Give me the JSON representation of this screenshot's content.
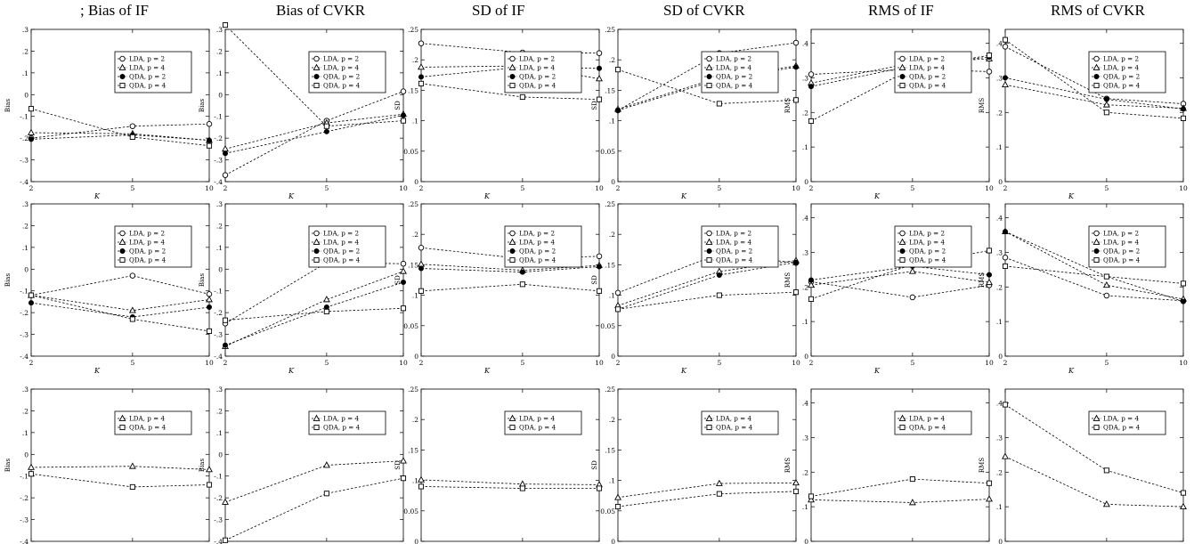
{
  "figure": {
    "column_titles": [
      "; Bias of IF",
      "Bias of CVKR",
      "SD of IF",
      "SD of CVKR",
      "RMS of IF",
      "RMS of CVKR"
    ]
  },
  "legend_labels": {
    "lda2": "LDA, p = 2",
    "lda4": "LDA, p = 4",
    "qda2": "QDA, p = 2",
    "qda4": "QDA, p = 4"
  },
  "markers": {
    "lda2": "open-circle",
    "lda4": "open-triangle",
    "qda2": "filled-circle",
    "qda4": "open-square"
  },
  "chart_data": [
    {
      "type": "line",
      "row": 1,
      "col": 1,
      "x": [
        2,
        5,
        10
      ],
      "xlabel": "K",
      "ylabel": "Bias",
      "ylim": [
        -0.4,
        0.3
      ],
      "yticks": [
        ".3",
        ".2",
        ".1",
        "0",
        "-.1",
        "-.2",
        "-.3",
        "-.4"
      ],
      "xticks": [
        "2",
        "5",
        "10"
      ],
      "series": [
        {
          "key": "lda2",
          "values": [
            -0.2,
            -0.145,
            -0.135
          ]
        },
        {
          "key": "lda4",
          "values": [
            -0.175,
            -0.18,
            -0.21
          ]
        },
        {
          "key": "qda2",
          "values": [
            -0.205,
            -0.185,
            -0.21
          ]
        },
        {
          "key": "qda4",
          "values": [
            -0.065,
            -0.195,
            -0.235
          ]
        }
      ]
    },
    {
      "type": "line",
      "row": 1,
      "col": 2,
      "x": [
        2,
        5,
        10
      ],
      "xlabel": "K",
      "ylabel": "Bias",
      "ylim": [
        -0.4,
        0.3
      ],
      "yticks": [
        ".3",
        ".2",
        ".1",
        "0",
        "-.1",
        "-.2",
        "-.3",
        "-.4"
      ],
      "xticks": [
        "2",
        "5",
        "10"
      ],
      "series": [
        {
          "key": "lda2",
          "values": [
            -0.37,
            -0.12,
            0.015
          ]
        },
        {
          "key": "lda4",
          "values": [
            -0.25,
            -0.13,
            -0.09
          ]
        },
        {
          "key": "qda2",
          "values": [
            -0.27,
            -0.17,
            -0.095
          ]
        },
        {
          "key": "qda4",
          "values": [
            0.32,
            -0.145,
            -0.12
          ]
        }
      ]
    },
    {
      "type": "line",
      "row": 1,
      "col": 3,
      "x": [
        2,
        5,
        10
      ],
      "xlabel": "K",
      "ylabel": "SD",
      "ylim": [
        0,
        0.25
      ],
      "yticks": [
        ".25",
        ".2",
        ".15",
        ".1",
        "0.05",
        "0"
      ],
      "xticks": [
        "2",
        "5",
        "10"
      ],
      "series": [
        {
          "key": "lda2",
          "values": [
            0.227,
            0.212,
            0.211
          ]
        },
        {
          "key": "lda4",
          "values": [
            0.188,
            0.19,
            0.169
          ]
        },
        {
          "key": "qda2",
          "values": [
            0.172,
            0.188,
            0.186
          ]
        },
        {
          "key": "qda4",
          "values": [
            0.161,
            0.139,
            0.135
          ]
        }
      ]
    },
    {
      "type": "line",
      "row": 1,
      "col": 4,
      "x": [
        2,
        5,
        10
      ],
      "xlabel": "K",
      "ylabel": "SD",
      "ylim": [
        0,
        0.25
      ],
      "yticks": [
        ".25",
        ".2",
        ".15",
        ".1",
        "0.05",
        "0"
      ],
      "xticks": [
        "2",
        "5",
        "10"
      ],
      "series": [
        {
          "key": "lda2",
          "values": [
            0.117,
            0.211,
            0.228
          ]
        },
        {
          "key": "lda4",
          "values": [
            0.119,
            0.171,
            0.19
          ]
        },
        {
          "key": "qda2",
          "values": [
            0.117,
            0.168,
            0.188
          ]
        },
        {
          "key": "qda4",
          "values": [
            0.184,
            0.128,
            0.134
          ]
        }
      ]
    },
    {
      "type": "line",
      "row": 1,
      "col": 5,
      "x": [
        2,
        5,
        10
      ],
      "xlabel": "K",
      "ylabel": "RMS",
      "ylim": [
        0,
        0.44
      ],
      "yticks": [
        ".4",
        ".3",
        ".2",
        ".1",
        "0"
      ],
      "xticks": [
        "2",
        "5",
        "10"
      ],
      "series": [
        {
          "key": "lda2",
          "values": [
            0.31,
            0.325,
            0.318
          ]
        },
        {
          "key": "lda4",
          "values": [
            0.285,
            0.343,
            0.355
          ]
        },
        {
          "key": "qda2",
          "values": [
            0.275,
            0.335,
            0.36
          ]
        },
        {
          "key": "qda4",
          "values": [
            0.175,
            0.328,
            0.365
          ]
        }
      ]
    },
    {
      "type": "line",
      "row": 1,
      "col": 6,
      "x": [
        2,
        5,
        10
      ],
      "xlabel": "K",
      "ylabel": "RMS",
      "ylim": [
        0,
        0.44
      ],
      "yticks": [
        ".4",
        ".3",
        ".2",
        ".1",
        "0"
      ],
      "xticks": [
        "2",
        "5",
        "10"
      ],
      "series": [
        {
          "key": "lda2",
          "values": [
            0.39,
            0.24,
            0.225
          ]
        },
        {
          "key": "lda4",
          "values": [
            0.28,
            0.222,
            0.212
          ]
        },
        {
          "key": "qda2",
          "values": [
            0.3,
            0.238,
            0.21
          ]
        },
        {
          "key": "qda4",
          "values": [
            0.41,
            0.2,
            0.183
          ]
        }
      ]
    },
    {
      "type": "line",
      "row": 2,
      "col": 1,
      "x": [
        2,
        5,
        10
      ],
      "xlabel": "K",
      "ylabel": "Bias",
      "ylim": [
        -0.4,
        0.3
      ],
      "yticks": [
        ".3",
        ".2",
        ".1",
        "0",
        "-.1",
        "-.2",
        "-.3",
        "-.4"
      ],
      "xticks": [
        "2",
        "5",
        "10"
      ],
      "series": [
        {
          "key": "lda2",
          "values": [
            -0.12,
            -0.03,
            -0.115
          ]
        },
        {
          "key": "lda4",
          "values": [
            -0.12,
            -0.19,
            -0.14
          ]
        },
        {
          "key": "qda2",
          "values": [
            -0.155,
            -0.22,
            -0.175
          ]
        },
        {
          "key": "qda4",
          "values": [
            -0.12,
            -0.23,
            -0.285
          ]
        }
      ]
    },
    {
      "type": "line",
      "row": 2,
      "col": 2,
      "x": [
        2,
        5,
        10
      ],
      "xlabel": "K",
      "ylabel": "Bias",
      "ylim": [
        -0.4,
        0.3
      ],
      "yticks": [
        ".3",
        ".2",
        ".1",
        "0",
        "-.1",
        "-.2",
        "-.3",
        "-.4"
      ],
      "xticks": [
        "2",
        "5",
        "10"
      ],
      "series": [
        {
          "key": "lda2",
          "values": [
            -0.25,
            0.03,
            0.025
          ]
        },
        {
          "key": "lda4",
          "values": [
            -0.355,
            -0.14,
            -0.01
          ]
        },
        {
          "key": "qda2",
          "values": [
            -0.35,
            -0.175,
            -0.06
          ]
        },
        {
          "key": "qda4",
          "values": [
            -0.235,
            -0.195,
            -0.18
          ]
        }
      ]
    },
    {
      "type": "line",
      "row": 2,
      "col": 3,
      "x": [
        2,
        5,
        10
      ],
      "xlabel": "K",
      "ylabel": "SD",
      "ylim": [
        0,
        0.25
      ],
      "yticks": [
        ".25",
        ".2",
        ".15",
        ".1",
        "0.05",
        "0"
      ],
      "xticks": [
        "2",
        "5",
        "10"
      ],
      "series": [
        {
          "key": "lda2",
          "values": [
            0.178,
            0.16,
            0.164
          ]
        },
        {
          "key": "lda4",
          "values": [
            0.151,
            0.141,
            0.149
          ]
        },
        {
          "key": "qda2",
          "values": [
            0.144,
            0.138,
            0.147
          ]
        },
        {
          "key": "qda4",
          "values": [
            0.107,
            0.118,
            0.107
          ]
        }
      ]
    },
    {
      "type": "line",
      "row": 2,
      "col": 4,
      "x": [
        2,
        5,
        10
      ],
      "xlabel": "K",
      "ylabel": "SD",
      "ylim": [
        0,
        0.25
      ],
      "yticks": [
        ".25",
        ".2",
        ".15",
        ".1",
        "0.05",
        "0"
      ],
      "xticks": [
        "2",
        "5",
        "10"
      ],
      "series": [
        {
          "key": "lda2",
          "values": [
            0.104,
            0.168,
            0.153
          ]
        },
        {
          "key": "lda4",
          "values": [
            0.083,
            0.139,
            0.157
          ]
        },
        {
          "key": "qda2",
          "values": [
            0.077,
            0.133,
            0.154
          ]
        },
        {
          "key": "qda4",
          "values": [
            0.077,
            0.1,
            0.105
          ]
        }
      ]
    },
    {
      "type": "line",
      "row": 2,
      "col": 5,
      "x": [
        2,
        5,
        10
      ],
      "xlabel": "K",
      "ylabel": "RMS",
      "ylim": [
        0,
        0.44
      ],
      "yticks": [
        ".4",
        ".3",
        ".2",
        ".1",
        "0"
      ],
      "xticks": [
        "2",
        "5",
        "10"
      ],
      "series": [
        {
          "key": "lda2",
          "values": [
            0.215,
            0.17,
            0.205
          ]
        },
        {
          "key": "lda4",
          "values": [
            0.205,
            0.245,
            0.213
          ]
        },
        {
          "key": "qda2",
          "values": [
            0.22,
            0.26,
            0.235
          ]
        },
        {
          "key": "qda4",
          "values": [
            0.165,
            0.265,
            0.305
          ]
        }
      ]
    },
    {
      "type": "line",
      "row": 2,
      "col": 6,
      "x": [
        2,
        5,
        10
      ],
      "xlabel": "K",
      "ylabel": "RMS",
      "ylim": [
        0,
        0.44
      ],
      "yticks": [
        ".4",
        ".3",
        ".2",
        ".1",
        "0"
      ],
      "xticks": [
        "2",
        "5",
        "10"
      ],
      "series": [
        {
          "key": "lda2",
          "values": [
            0.285,
            0.175,
            0.16
          ]
        },
        {
          "key": "lda4",
          "values": [
            0.36,
            0.205,
            0.165
          ]
        },
        {
          "key": "qda2",
          "values": [
            0.36,
            0.23,
            0.158
          ]
        },
        {
          "key": "qda4",
          "values": [
            0.26,
            0.23,
            0.21
          ]
        }
      ]
    },
    {
      "type": "line",
      "row": 3,
      "col": 1,
      "x": [
        2,
        5,
        10
      ],
      "xlabel": "K",
      "ylabel": "Bias",
      "ylim": [
        -0.4,
        0.3
      ],
      "yticks": [
        ".3",
        ".2",
        ".1",
        "0",
        "-.1",
        "-.2",
        "-.3",
        "-.4"
      ],
      "xticks": [
        "2",
        "5",
        "10"
      ],
      "series": [
        {
          "key": "lda4",
          "values": [
            -0.06,
            -0.055,
            -0.07
          ]
        },
        {
          "key": "qda4",
          "values": [
            -0.09,
            -0.15,
            -0.14
          ]
        }
      ]
    },
    {
      "type": "line",
      "row": 3,
      "col": 2,
      "x": [
        2,
        5,
        10
      ],
      "xlabel": "K",
      "ylabel": "Bias",
      "ylim": [
        -0.4,
        0.3
      ],
      "yticks": [
        ".3",
        ".2",
        ".1",
        "0",
        "-.1",
        "-.2",
        "-.3",
        "-.4"
      ],
      "xticks": [
        "2",
        "5",
        "10"
      ],
      "series": [
        {
          "key": "lda4",
          "values": [
            -0.22,
            -0.05,
            -0.03
          ]
        },
        {
          "key": "qda4",
          "values": [
            -0.395,
            -0.18,
            -0.11
          ]
        }
      ]
    },
    {
      "type": "line",
      "row": 3,
      "col": 3,
      "x": [
        2,
        5,
        10
      ],
      "xlabel": "K",
      "ylabel": "SD",
      "ylim": [
        0,
        0.25
      ],
      "yticks": [
        ".25",
        ".2",
        ".15",
        ".1",
        "0.05",
        "0"
      ],
      "xticks": [
        "2",
        "5",
        "10"
      ],
      "series": [
        {
          "key": "lda4",
          "values": [
            0.101,
            0.094,
            0.093
          ]
        },
        {
          "key": "qda4",
          "values": [
            0.09,
            0.087,
            0.087
          ]
        }
      ]
    },
    {
      "type": "line",
      "row": 3,
      "col": 4,
      "x": [
        2,
        5,
        10
      ],
      "xlabel": "K",
      "ylabel": "SD",
      "ylim": [
        0,
        0.25
      ],
      "yticks": [
        ".25",
        ".2",
        ".15",
        ".1",
        "0.05",
        "0"
      ],
      "xticks": [
        "2",
        "5",
        "10"
      ],
      "series": [
        {
          "key": "lda4",
          "values": [
            0.072,
            0.095,
            0.096
          ]
        },
        {
          "key": "qda4",
          "values": [
            0.057,
            0.078,
            0.082
          ]
        }
      ]
    },
    {
      "type": "line",
      "row": 3,
      "col": 5,
      "x": [
        2,
        5,
        10
      ],
      "xlabel": "K",
      "ylabel": "RMS",
      "ylim": [
        0,
        0.44
      ],
      "yticks": [
        ".4",
        ".3",
        ".2",
        ".1",
        "0"
      ],
      "xticks": [
        "2",
        "5",
        "10"
      ],
      "series": [
        {
          "key": "lda4",
          "values": [
            0.12,
            0.112,
            0.122
          ]
        },
        {
          "key": "qda4",
          "values": [
            0.13,
            0.18,
            0.168
          ]
        }
      ]
    },
    {
      "type": "line",
      "row": 3,
      "col": 6,
      "x": [
        2,
        5,
        10
      ],
      "xlabel": "K",
      "ylabel": "RMS",
      "ylim": [
        0,
        0.44
      ],
      "yticks": [
        ".4",
        ".3",
        ".2",
        ".1",
        "0"
      ],
      "xticks": [
        "2",
        "5",
        "10"
      ],
      "series": [
        {
          "key": "lda4",
          "values": [
            0.245,
            0.107,
            0.1
          ]
        },
        {
          "key": "qda4",
          "values": [
            0.395,
            0.205,
            0.14
          ]
        }
      ]
    }
  ]
}
